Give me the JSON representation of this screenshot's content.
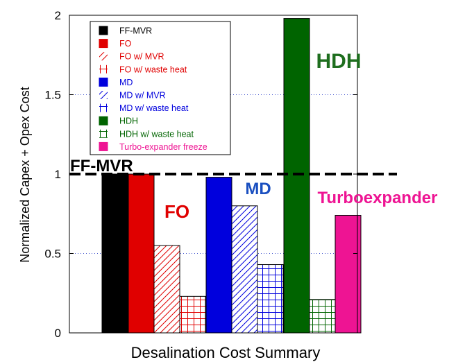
{
  "chart_data": {
    "type": "bar",
    "title": "",
    "xlabel": "Desalination Cost Summary",
    "ylabel": "Normalized Capex + Opex Cost",
    "ylim": [
      0,
      2
    ],
    "yticks": [
      0,
      0.5,
      1,
      1.5,
      2
    ],
    "ytick_labels": [
      "0",
      "0.5",
      "1",
      "1.5",
      "2"
    ],
    "grid": "dotted horizontal at 0.5 and 1.5",
    "legend_position": "top-left",
    "reference_line": {
      "value": 1,
      "label": "FF-MVR",
      "style": "dashed"
    },
    "series": [
      {
        "name": "FF-MVR",
        "value": 1.0,
        "color": "#000000",
        "pattern": "solid"
      },
      {
        "name": "FO",
        "value": 1.0,
        "color": "#e00000",
        "pattern": "solid"
      },
      {
        "name": "FO w/ MVR",
        "value": 0.55,
        "color": "#e00000",
        "pattern": "diagonal"
      },
      {
        "name": "FO w/ waste heat",
        "value": 0.23,
        "color": "#e00000",
        "pattern": "grid"
      },
      {
        "name": "MD",
        "value": 0.98,
        "color": "#0000dd",
        "pattern": "solid"
      },
      {
        "name": "MD w/ MVR",
        "value": 0.8,
        "color": "#0000dd",
        "pattern": "diagonal"
      },
      {
        "name": "MD w/ waste heat",
        "value": 0.43,
        "color": "#0000dd",
        "pattern": "grid"
      },
      {
        "name": "HDH",
        "value": 1.98,
        "color": "#006400",
        "pattern": "solid"
      },
      {
        "name": "HDH w/ waste heat",
        "value": 0.21,
        "color": "#006400",
        "pattern": "grid"
      },
      {
        "name": "Turbo-expander freeze",
        "value": 0.74,
        "color": "#ee1493",
        "pattern": "solid"
      }
    ],
    "annotations": [
      {
        "text": "FF-MVR",
        "color": "#000000"
      },
      {
        "text": "FO",
        "color": "#e00000"
      },
      {
        "text": "MD",
        "color": "#1a4fc0"
      },
      {
        "text": "HDH",
        "color": "#1e6e1e"
      },
      {
        "text": "Turboexpander",
        "color": "#ee1493"
      }
    ]
  }
}
